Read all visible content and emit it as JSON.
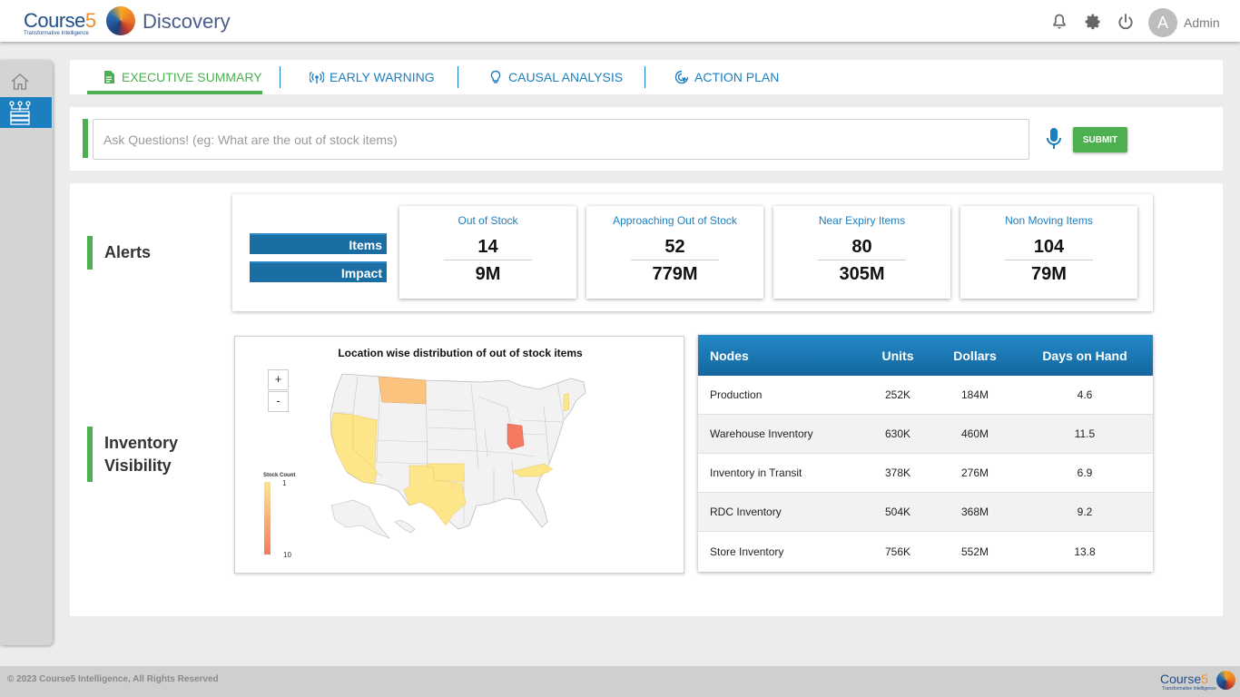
{
  "header": {
    "logo_main": "Course",
    "logo_five": "5",
    "logo_tagline": "Transformative Intelligence",
    "app_title": "Discovery",
    "avatar_initial": "A",
    "user_name": "Admin",
    "icons": [
      "bell-icon",
      "gear-icon",
      "power-icon"
    ]
  },
  "sidebar": {
    "items": [
      {
        "icon": "home-icon",
        "active": false
      },
      {
        "icon": "hierarchy-icon",
        "active": true
      }
    ]
  },
  "tabs": [
    {
      "label": "EXECUTIVE SUMMARY",
      "icon": "document-icon",
      "active": true
    },
    {
      "label": "EARLY WARNING",
      "icon": "broadcast-icon",
      "active": false
    },
    {
      "label": "CAUSAL ANALYSIS",
      "icon": "lightbulb-icon",
      "active": false
    },
    {
      "label": "ACTION PLAN",
      "icon": "target-cursor-icon",
      "active": false
    }
  ],
  "search": {
    "placeholder": "Ask Questions! (eg: What are the out of stock items)",
    "value": "",
    "submit_label": "SUBMIT"
  },
  "alerts": {
    "section_title": "Alerts",
    "row_labels": {
      "items": "Items",
      "impact": "Impact"
    },
    "metrics": [
      {
        "title": "Out of Stock",
        "items": "14",
        "impact": "9M"
      },
      {
        "title": "Approaching Out of Stock",
        "items": "52",
        "impact": "779M"
      },
      {
        "title": "Near Expiry Items",
        "items": "80",
        "impact": "305M"
      },
      {
        "title": "Non Moving Items",
        "items": "104",
        "impact": "79M"
      }
    ]
  },
  "inventory": {
    "section_title_line1": "Inventory",
    "section_title_line2": "Visibility",
    "map": {
      "title": "Location wise distribution of out of stock items",
      "zoom_in": "+",
      "zoom_out": "-",
      "legend_title": "Stock Count",
      "legend_min": "1",
      "legend_max": "10",
      "colors": {
        "low": "#fde58a",
        "mid": "#fbb170",
        "high": "#f47a62",
        "none": "#f2f2f2"
      }
    },
    "table": {
      "columns": [
        "Nodes",
        "Units",
        "Dollars",
        "Days on Hand"
      ],
      "rows": [
        [
          "Production",
          "252K",
          "184M",
          "4.6"
        ],
        [
          "Warehouse Inventory",
          "630K",
          "460M",
          "11.5"
        ],
        [
          "Inventory in Transit",
          "378K",
          "276M",
          "6.9"
        ],
        [
          "RDC Inventory",
          "504K",
          "368M",
          "9.2"
        ],
        [
          "Store Inventory",
          "756K",
          "552M",
          "13.8"
        ]
      ]
    }
  },
  "footer": {
    "copyright": "© 2023 Course5 Intelligence, All Rights Reserved",
    "logo_main": "Course",
    "logo_five": "5",
    "logo_tagline": "Transformative Intelligence"
  },
  "colors": {
    "accent_green": "#4caf50",
    "accent_blue": "#1b7fc0",
    "table_header": "#1b6ea3"
  }
}
